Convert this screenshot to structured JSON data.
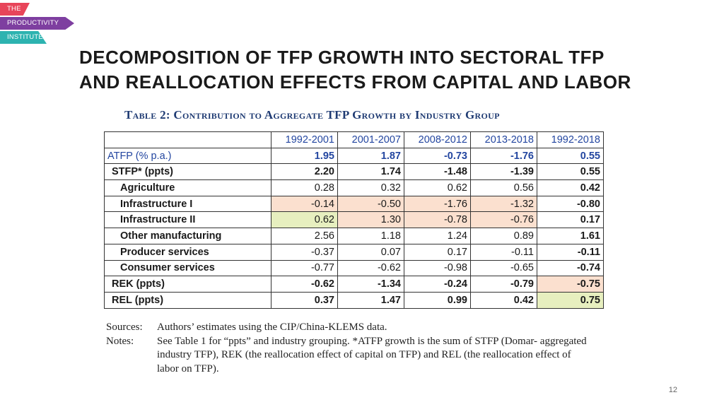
{
  "logo": {
    "line1": "THE",
    "line2": "PRODUCTIVITY",
    "line3": "INSTITUTE"
  },
  "title": {
    "line1": "DECOMPOSITION OF TFP GROWTH INTO SECTORAL TFP",
    "line2": "AND REALLOCATION EFFECTS FROM CAPITAL AND LABOR"
  },
  "table": {
    "caption": "Table 2: Contribution to Aggregate TFP Growth by Industry Group",
    "columns": [
      "1992-2001",
      "2001-2007",
      "2008-2012",
      "2013-2018",
      "1992-2018"
    ],
    "rows": [
      {
        "label": "ATFP (% p.a.)",
        "values": [
          "1.95",
          "1.87",
          "-0.73",
          "-1.76",
          "0.55"
        ]
      },
      {
        "label": "STFP* (ppts)",
        "values": [
          "2.20",
          "1.74",
          "-1.48",
          "-1.39",
          "0.55"
        ]
      },
      {
        "label": "Agriculture",
        "values": [
          "0.28",
          "0.32",
          "0.62",
          "0.56",
          "0.42"
        ]
      },
      {
        "label": "Infrastructure I",
        "values": [
          "-0.14",
          "-0.50",
          "-1.76",
          "-1.32",
          "-0.80"
        ]
      },
      {
        "label": "Infrastructure II",
        "values": [
          "0.62",
          "1.30",
          "-0.78",
          "-0.76",
          "0.17"
        ]
      },
      {
        "label": "Other manufacturing",
        "values": [
          "2.56",
          "1.18",
          "1.24",
          "0.89",
          "1.61"
        ]
      },
      {
        "label": "Producer services",
        "values": [
          "-0.37",
          "0.07",
          "0.17",
          "-0.11",
          "-0.11"
        ]
      },
      {
        "label": "Consumer services",
        "values": [
          "-0.77",
          "-0.62",
          "-0.98",
          "-0.65",
          "-0.74"
        ]
      },
      {
        "label": "REK (ppts)",
        "values": [
          "-0.62",
          "-1.34",
          "-0.24",
          "-0.79",
          "-0.75"
        ]
      },
      {
        "label": "REL (ppts)",
        "values": [
          "0.37",
          "1.47",
          "0.99",
          "0.42",
          "0.75"
        ]
      }
    ]
  },
  "notes": {
    "sources_label": "Sources:",
    "sources_text": "Authors’ estimates using the CIP/China-KLEMS data.",
    "notes_label": "Notes:",
    "notes_text": "See Table 1 for “ppts” and industry grouping. *ATFP growth is the sum of STFP (Domar- aggregated industry TFP), REK (the reallocation effect of capital on TFP) and REL (the reallocation effect of labor on TFP)."
  },
  "page_number": "12",
  "colors": {
    "header_blue": "#2346a0",
    "highlight_orange": "#fbe0cf",
    "highlight_green": "#e7efbf"
  }
}
